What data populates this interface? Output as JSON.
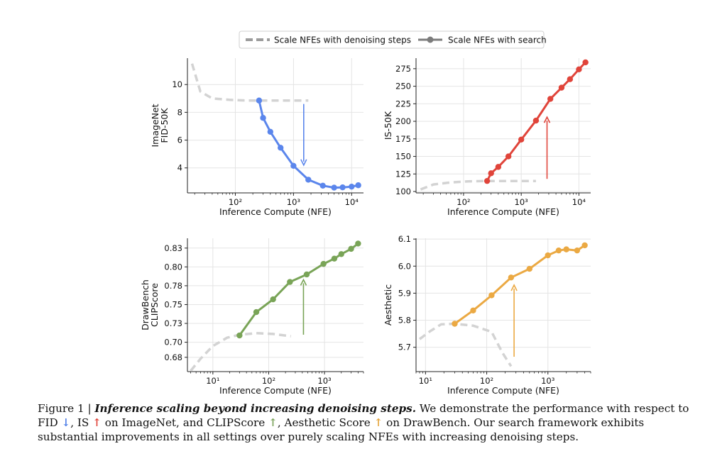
{
  "legend": {
    "dashed_label": "Scale NFEs with denoising steps",
    "search_label": "Scale NFEs with search"
  },
  "chart_data": [
    {
      "type": "line",
      "ylabel": "ImageNet\nFID-50K",
      "xlabel": "Inference Compute (NFE)",
      "xscale": "log",
      "xlim": [
        15,
        16000
      ],
      "ylim": [
        2.2,
        11.9
      ],
      "xticks": [
        "10^2",
        "10^3",
        "10^4"
      ],
      "xtick_values": [
        100,
        1000,
        10000
      ],
      "yticks": [
        "4",
        "6",
        "8",
        "10"
      ],
      "ytick_values": [
        4,
        6,
        8,
        10
      ],
      "grid": true,
      "color": "#5b86ec",
      "arrow": {
        "x": 1500,
        "y_start": 8.6,
        "y_end": 4.2
      },
      "series": [
        {
          "style": "dashed",
          "x": [
            18,
            25,
            40,
            80,
            150,
            300,
            600,
            1000,
            1800
          ],
          "y": [
            11.5,
            9.5,
            9.0,
            8.9,
            8.85,
            8.85,
            8.85,
            8.85,
            8.85
          ]
        },
        {
          "style": "solid-markers",
          "x": [
            256,
            300,
            400,
            600,
            1000,
            1800,
            3200,
            5000,
            7000,
            10000,
            13000
          ],
          "y": [
            8.85,
            7.6,
            6.6,
            5.45,
            4.15,
            3.15,
            2.72,
            2.58,
            2.6,
            2.65,
            2.75
          ]
        }
      ]
    },
    {
      "type": "line",
      "ylabel": "IS-50K",
      "xlabel": "Inference Compute (NFE)",
      "xscale": "log",
      "xlim": [
        15,
        16000
      ],
      "ylim": [
        98,
        290
      ],
      "xticks": [
        "10^2",
        "10^3",
        "10^4"
      ],
      "xtick_values": [
        100,
        1000,
        10000
      ],
      "yticks": [
        "100",
        "125",
        "150",
        "175",
        "200",
        "225",
        "250",
        "275"
      ],
      "ytick_values": [
        100,
        125,
        150,
        175,
        200,
        225,
        250,
        275
      ],
      "grid": true,
      "color": "#e0443a",
      "arrow": {
        "x": 2800,
        "y_start": 118,
        "y_end": 206
      },
      "series": [
        {
          "style": "dashed",
          "x": [
            18,
            30,
            60,
            120,
            250,
            500,
            1000,
            1800
          ],
          "y": [
            103,
            110,
            113,
            114.5,
            115,
            115,
            115,
            115
          ]
        },
        {
          "style": "solid-markers",
          "x": [
            256,
            300,
            400,
            600,
            1000,
            1800,
            3200,
            5000,
            7000,
            10000,
            13000
          ],
          "y": [
            115,
            126,
            135,
            150,
            174,
            201,
            232,
            248,
            260,
            274,
            284
          ]
        }
      ]
    },
    {
      "type": "line",
      "ylabel": "DrawBench\nCLIPScore",
      "xlabel": "Inference Compute (NFE)",
      "xscale": "log",
      "xlim": [
        3.5,
        5000
      ],
      "ylim": [
        0.661,
        0.838
      ],
      "xticks": [
        "10^1",
        "10^2",
        "10^3"
      ],
      "xtick_values": [
        10,
        100,
        1000
      ],
      "yticks": [
        "0.68",
        "0.70",
        "0.73",
        "0.75",
        "0.78",
        "0.80",
        "0.83"
      ],
      "ytick_values": [
        0.68,
        0.7,
        0.725,
        0.75,
        0.775,
        0.8,
        0.825
      ],
      "grid": true,
      "color": "#79a457",
      "arrow": {
        "x": 420,
        "y_start": 0.71,
        "y_end": 0.783
      },
      "series": [
        {
          "style": "dashed",
          "x": [
            4,
            6,
            10,
            18,
            30,
            60,
            120,
            250
          ],
          "y": [
            0.662,
            0.678,
            0.695,
            0.706,
            0.71,
            0.712,
            0.711,
            0.708
          ]
        },
        {
          "style": "solid-markers",
          "x": [
            30,
            60,
            120,
            240,
            480,
            960,
            1500,
            2000,
            3000,
            4000
          ],
          "y": [
            0.709,
            0.74,
            0.757,
            0.78,
            0.79,
            0.804,
            0.811,
            0.817,
            0.824,
            0.831
          ]
        }
      ]
    },
    {
      "type": "line",
      "ylabel": "Aesthetic",
      "xlabel": "Inference Compute (NFE)",
      "xscale": "log",
      "xlim": [
        7,
        5000
      ],
      "ylim": [
        5.61,
        6.103
      ],
      "xticks": [
        "10^1",
        "10^2",
        "10^3"
      ],
      "xtick_values": [
        10,
        100,
        1000
      ],
      "yticks": [
        "5.7",
        "5.8",
        "5.9",
        "6.0",
        "6.1"
      ],
      "ytick_values": [
        5.7,
        5.8,
        5.9,
        6.0,
        6.1
      ],
      "grid": true,
      "color": "#eba943",
      "arrow": {
        "x": 280,
        "y_start": 5.665,
        "y_end": 5.93
      },
      "series": [
        {
          "style": "dashed",
          "x": [
            8,
            12,
            18,
            30,
            60,
            120,
            180,
            250
          ],
          "y": [
            5.73,
            5.76,
            5.785,
            5.787,
            5.78,
            5.757,
            5.68,
            5.63
          ]
        },
        {
          "style": "solid-markers",
          "x": [
            30,
            60,
            120,
            250,
            500,
            1000,
            1500,
            2000,
            3000,
            4000
          ],
          "y": [
            5.787,
            5.836,
            5.892,
            5.958,
            5.99,
            6.04,
            6.058,
            6.062,
            6.058,
            6.077
          ]
        }
      ]
    }
  ],
  "caption": {
    "fig_label": "Figure 1 | ",
    "title": "Inference scaling beyond increasing denoising steps.",
    "text1": " We demonstrate the performance with respect to FID ",
    "arrow_down": "↓",
    "text2": ", IS ",
    "arrow_up": "↑",
    "text3": " on ImageNet, and CLIPScore ",
    "text4": ", Aesthetic Score ",
    "text5": " on DrawBench. Our search framework exhibits substantial improvements in all settings over purely scaling NFEs with increasing denoising steps."
  }
}
